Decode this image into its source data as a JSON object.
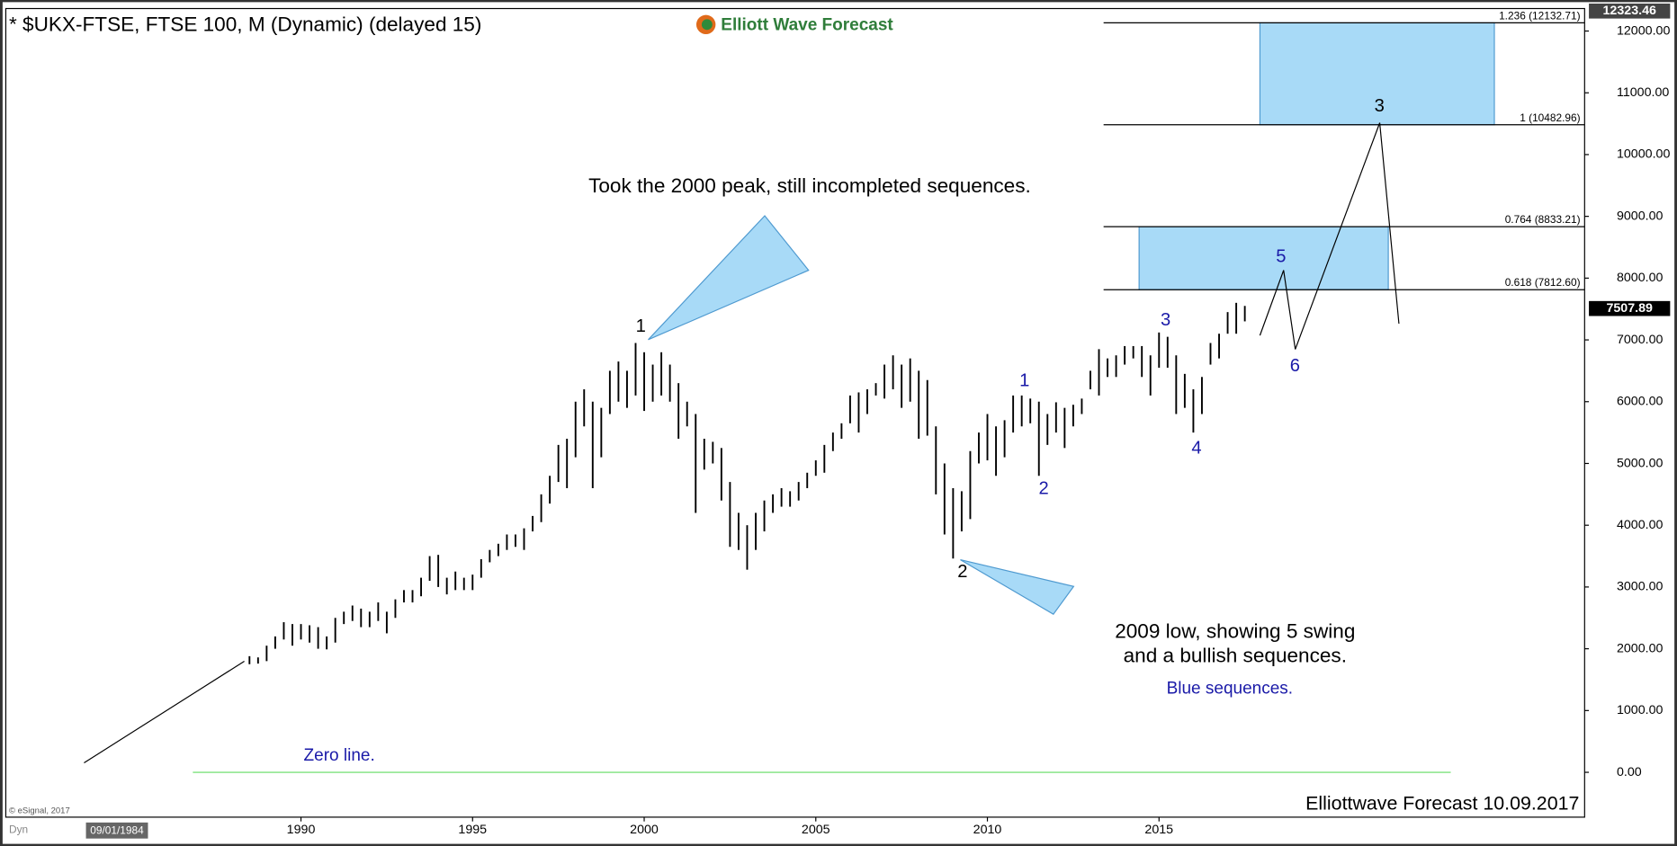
{
  "chart_data": {
    "type": "hilo",
    "title": "* $UKX-FTSE, FTSE 100, M (Dynamic) (delayed 15)",
    "logo": "Elliott Wave Forecast",
    "color": "#000000",
    "xlim": [
      1981.4,
      2027.4
    ],
    "ylim": [
      -726,
      12364
    ],
    "xticks": [
      1990,
      1995,
      2000,
      2005,
      2010,
      2015
    ],
    "yticks": [
      {
        "value": 0,
        "label": "0.00"
      },
      {
        "value": 1000,
        "label": "1000.00"
      },
      {
        "value": 2000,
        "label": "2000.00"
      },
      {
        "value": 3000,
        "label": "3000.00"
      },
      {
        "value": 4000,
        "label": "4000.00"
      },
      {
        "value": 5000,
        "label": "5000.00"
      },
      {
        "value": 6000,
        "label": "6000.00"
      },
      {
        "value": 7000,
        "label": "7000.00"
      },
      {
        "value": 8000,
        "label": "8000.00"
      },
      {
        "value": 9000,
        "label": "9000.00"
      },
      {
        "value": 10000,
        "label": "10000.00"
      },
      {
        "value": 11000,
        "label": "11000.00"
      },
      {
        "value": 12000,
        "label": "12000.00"
      }
    ],
    "x": [
      1988.5,
      1988.75,
      1989,
      1989.25,
      1989.5,
      1989.75,
      1990,
      1990.25,
      1990.5,
      1990.75,
      1991,
      1991.25,
      1991.5,
      1991.75,
      1992,
      1992.25,
      1992.5,
      1992.75,
      1993,
      1993.25,
      1993.5,
      1993.75,
      1994,
      1994.25,
      1994.5,
      1994.75,
      1995,
      1995.25,
      1995.5,
      1995.75,
      1996,
      1996.25,
      1996.5,
      1996.75,
      1997,
      1997.25,
      1997.5,
      1997.75,
      1998,
      1998.25,
      1998.5,
      1998.75,
      1999,
      1999.25,
      1999.5,
      1999.75,
      2000,
      2000.25,
      2000.5,
      2000.75,
      2001,
      2001.25,
      2001.5,
      2001.75,
      2002,
      2002.25,
      2002.5,
      2002.75,
      2003,
      2003.25,
      2003.5,
      2003.75,
      2004,
      2004.25,
      2004.5,
      2004.75,
      2005,
      2005.25,
      2005.5,
      2005.75,
      2006,
      2006.25,
      2006.5,
      2006.75,
      2007,
      2007.25,
      2007.5,
      2007.75,
      2008,
      2008.25,
      2008.5,
      2008.75,
      2009,
      2009.25,
      2009.5,
      2009.75,
      2010,
      2010.25,
      2010.5,
      2010.75,
      2011,
      2011.25,
      2011.5,
      2011.75,
      2012,
      2012.25,
      2012.5,
      2012.75,
      2013,
      2013.25,
      2013.5,
      2013.75,
      2014,
      2014.25,
      2014.5,
      2014.75,
      2015,
      2015.25,
      2015.5,
      2015.75,
      2016,
      2016.25,
      2016.5,
      2016.75,
      2017,
      2017.25,
      2017.5
    ],
    "high": [
      1880,
      1860,
      2050,
      2200,
      2430,
      2400,
      2400,
      2380,
      2350,
      2200,
      2500,
      2600,
      2700,
      2650,
      2600,
      2750,
      2600,
      2800,
      2950,
      2950,
      3150,
      3500,
      3520,
      3150,
      3250,
      3150,
      3200,
      3450,
      3600,
      3700,
      3850,
      3850,
      3950,
      4150,
      4500,
      4800,
      5300,
      5400,
      6000,
      6200,
      6000,
      5900,
      6500,
      6650,
      6500,
      6950,
      6800,
      6600,
      6800,
      6600,
      6300,
      6000,
      5800,
      5400,
      5350,
      5250,
      4700,
      4200,
      4000,
      4200,
      4400,
      4500,
      4600,
      4550,
      4700,
      4850,
      5050,
      5300,
      5500,
      5650,
      6100,
      6150,
      6200,
      6300,
      6600,
      6750,
      6600,
      6700,
      6500,
      6350,
      5600,
      5000,
      4600,
      4550,
      5200,
      5500,
      5800,
      5600,
      5700,
      6100,
      6100,
      6050,
      6000,
      5800,
      5990,
      5900,
      5950,
      6050,
      6500,
      6850,
      6700,
      6750,
      6900,
      6900,
      6900,
      6750,
      7120,
      7050,
      6750,
      6450,
      6200,
      6400,
      6950,
      7100,
      7450,
      7600,
      7550
    ],
    "low": [
      1750,
      1760,
      1800,
      2000,
      2150,
      2050,
      2150,
      2100,
      2000,
      1990,
      2100,
      2400,
      2450,
      2350,
      2350,
      2450,
      2250,
      2500,
      2750,
      2750,
      2850,
      3100,
      3000,
      2880,
      2950,
      2950,
      2950,
      3150,
      3400,
      3500,
      3600,
      3650,
      3600,
      3900,
      4050,
      4350,
      4700,
      4600,
      5100,
      5600,
      4600,
      5100,
      5800,
      6000,
      5900,
      6100,
      5850,
      6000,
      6100,
      6000,
      5400,
      5600,
      4200,
      4900,
      5000,
      4400,
      3650,
      3600,
      3280,
      3600,
      3900,
      4200,
      4300,
      4300,
      4400,
      4600,
      4800,
      4850,
      5200,
      5400,
      5650,
      5500,
      5800,
      6100,
      6050,
      6200,
      5900,
      6000,
      5400,
      5450,
      4500,
      3850,
      3460,
      3900,
      4100,
      5000,
      5050,
      4800,
      5100,
      5500,
      5600,
      5650,
      4800,
      5300,
      5500,
      5250,
      5600,
      5800,
      6200,
      6100,
      6400,
      6400,
      6600,
      6700,
      6400,
      6100,
      6550,
      6550,
      5800,
      5900,
      5500,
      5800,
      6600,
      6700,
      7100,
      7100,
      7300
    ],
    "levels": [
      {
        "value": 12132.71,
        "label": "1.236 (12132.71)"
      },
      {
        "value": 10482.96,
        "label": "1 (10482.96)"
      },
      {
        "value": 8833.21,
        "label": "0.764 (8833.21)"
      },
      {
        "value": 7812.6,
        "label": "0.618 (7812.60)"
      }
    ],
    "zones": [
      {
        "x": [
          2017.94,
          2024.77
        ],
        "y": [
          10482.96,
          12132.71
        ]
      },
      {
        "x": [
          2014.42,
          2021.68
        ],
        "y": [
          7812.6,
          8833.21
        ]
      }
    ],
    "zone_color": "#a8daf7",
    "last_price": {
      "value": 7507.89,
      "label": "7507.89"
    },
    "top_price": {
      "value": 12323.46,
      "label": "12323.46"
    },
    "trend_line": {
      "x": [
        1983.68,
        1988.35
      ],
      "values": [
        154,
        1798
      ]
    },
    "projection": {
      "x": [
        2017.94,
        2018.63,
        2018.97,
        2021.43,
        2021.99
      ],
      "values": [
        7072,
        8127,
        6848,
        10514,
        7263
      ]
    },
    "zero_line": {
      "x": [
        1986.85,
        2023.5
      ],
      "value": 0,
      "color": "#5fdc5f"
    },
    "wave_labels": [
      {
        "text": "1",
        "color": "#000000"
      },
      {
        "text": "2",
        "color": "#000000"
      },
      {
        "text": "1",
        "color": "#1a1aa8"
      },
      {
        "text": "2",
        "color": "#1a1aa8"
      },
      {
        "text": "3",
        "color": "#1a1aa8"
      },
      {
        "text": "4",
        "color": "#1a1aa8"
      },
      {
        "text": "5",
        "color": "#1a1aa8"
      },
      {
        "text": "6",
        "color": "#1a1aa8"
      },
      {
        "text": "3",
        "color": "#000000"
      }
    ],
    "annotations": [
      "Took the 2000 peak, still incompleted sequences.",
      "2009 low, showing 5 swing",
      "and a bullish sequences.",
      "Blue sequences.",
      "Zero line."
    ],
    "cursor_date": "09/01/1984",
    "footer": "Elliottwave Forecast  10.09.2017",
    "copyright": "© eSignal, 2017",
    "mode": "Dyn"
  }
}
